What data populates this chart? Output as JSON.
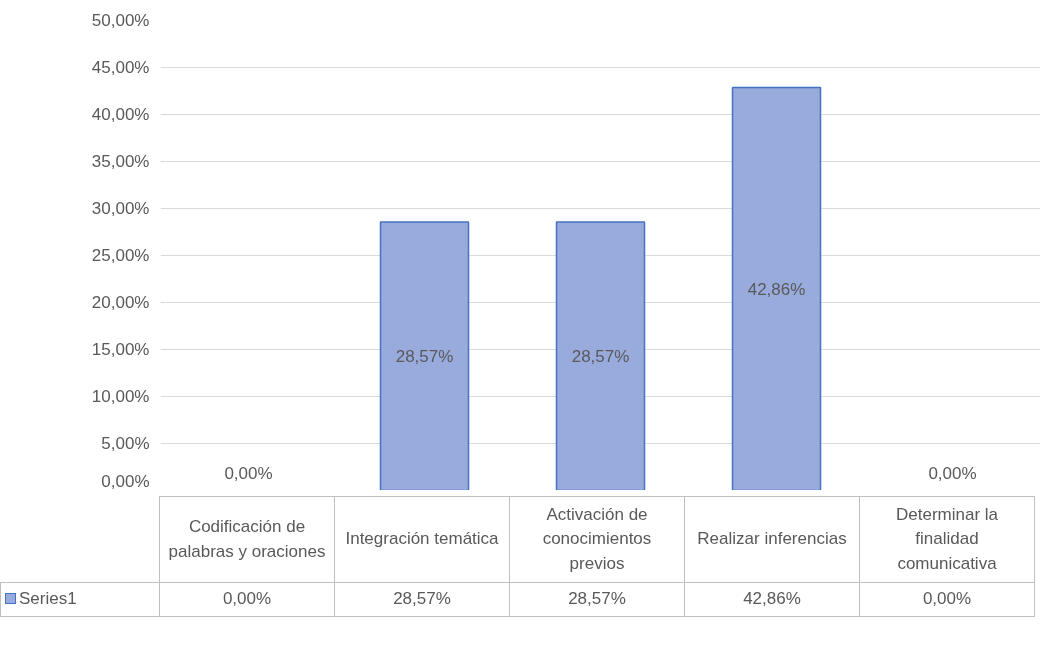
{
  "chart_data": {
    "type": "bar",
    "categories": [
      "Codificación de palabras y oraciones",
      "Integración temática",
      "Activación de conocimientos previos",
      "Realizar inferencias",
      "Determinar la finalidad comunicativa"
    ],
    "series": [
      {
        "name": "Series1",
        "color": "#98abdc",
        "values": [
          0,
          28.57,
          28.57,
          42.86,
          0
        ]
      }
    ],
    "ylim": [
      0,
      50
    ],
    "yticks": [
      {
        "value": 0,
        "label": "0,00%"
      },
      {
        "value": 5,
        "label": "5,00%"
      },
      {
        "value": 10,
        "label": "10,00%"
      },
      {
        "value": 15,
        "label": "15,00%"
      },
      {
        "value": 20,
        "label": "20,00%"
      },
      {
        "value": 25,
        "label": "25,00%"
      },
      {
        "value": 30,
        "label": "30,00%"
      },
      {
        "value": 35,
        "label": "35,00%"
      },
      {
        "value": 40,
        "label": "40,00%"
      },
      {
        "value": 45,
        "label": "45,00%"
      },
      {
        "value": 50,
        "label": "50,00%"
      }
    ],
    "value_labels": [
      "0,00%",
      "28,57%",
      "28,57%",
      "42,86%",
      "0,00%"
    ],
    "grid": "y",
    "legend": "bottom"
  }
}
